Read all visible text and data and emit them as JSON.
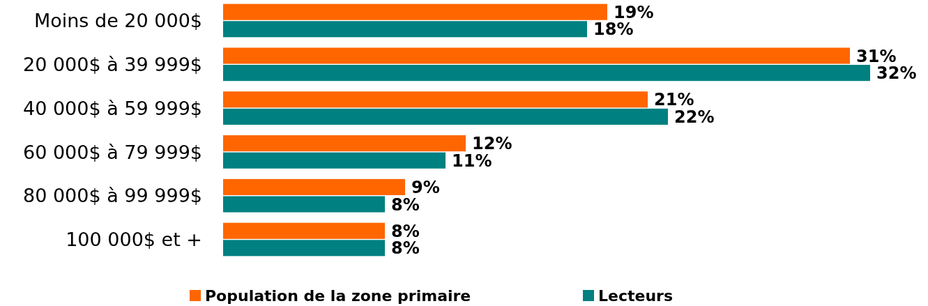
{
  "chart_data": {
    "type": "bar",
    "orientation": "horizontal",
    "categories": [
      "Moins de 20 000$",
      "20 000$ à 39 999$",
      "40 000$ à 59 999$",
      "60 000$ à 79 999$",
      "80 000$ à 99 999$",
      "100 000$ et +"
    ],
    "series": [
      {
        "name": "Population de la zone primaire",
        "color": "#ff6600",
        "values": [
          19,
          31,
          21,
          12,
          9,
          8
        ],
        "value_labels": [
          "19%",
          "31%",
          "21%",
          "12%",
          "9%",
          "8%"
        ]
      },
      {
        "name": "Lecteurs",
        "color": "#008080",
        "values": [
          18,
          32,
          22,
          11,
          8,
          8
        ],
        "value_labels": [
          "18%",
          "32%",
          "22%",
          "11%",
          "8%",
          "8%"
        ]
      }
    ],
    "legend": "bottom"
  }
}
